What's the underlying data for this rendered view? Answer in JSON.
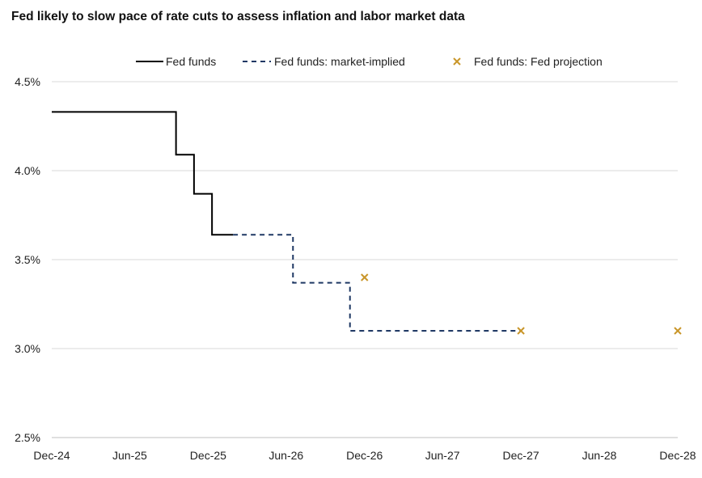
{
  "chart_data": {
    "type": "line",
    "title": "Fed likely to slow pace of rate cuts to assess inflation and labor market data",
    "xlabel": "",
    "ylabel": "",
    "ylim": [
      2.5,
      4.5
    ],
    "yticks": [
      2.5,
      3.0,
      3.5,
      4.0,
      4.5
    ],
    "ytick_labels": [
      "2.5%",
      "3.0%",
      "3.5%",
      "4.0%",
      "4.5%"
    ],
    "xlim": [
      "2024-12-01",
      "2028-12-01"
    ],
    "xtick_dates": [
      "2024-12-01",
      "2025-06-01",
      "2025-12-01",
      "2026-06-01",
      "2026-12-01",
      "2027-06-01",
      "2027-12-01",
      "2028-06-01",
      "2028-12-01"
    ],
    "xtick_labels": [
      "Dec-24",
      "Jun-25",
      "Dec-25",
      "Jun-26",
      "Dec-26",
      "Jun-27",
      "Dec-27",
      "Jun-28",
      "Dec-28"
    ],
    "grid": "horizontal",
    "legend_position": "top",
    "series": [
      {
        "name": "Fed funds",
        "style": "solid-step",
        "color": "#000000",
        "points": [
          [
            "2024-12-01",
            4.33
          ],
          [
            "2025-09-17",
            4.09
          ],
          [
            "2025-10-29",
            3.87
          ],
          [
            "2025-12-10",
            3.64
          ],
          [
            "2026-01-28",
            3.64
          ]
        ]
      },
      {
        "name": "Fed funds: market-implied",
        "style": "dashed-step",
        "color": "#1f3864",
        "points": [
          [
            "2026-01-28",
            3.64
          ],
          [
            "2026-06-17",
            3.37
          ],
          [
            "2026-10-28",
            3.1
          ],
          [
            "2027-12-01",
            3.1
          ]
        ]
      },
      {
        "name": "Fed funds: Fed projection",
        "style": "x-marker",
        "color": "#c9962a",
        "points": [
          [
            "2026-12-01",
            3.4
          ],
          [
            "2027-12-01",
            3.1
          ],
          [
            "2028-12-01",
            3.1
          ]
        ]
      }
    ]
  }
}
